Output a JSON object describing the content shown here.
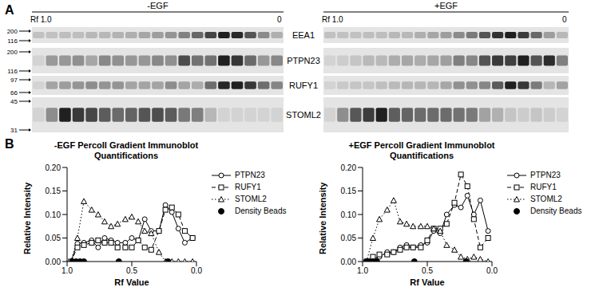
{
  "panel_labels": [
    "A",
    "B"
  ],
  "blots": {
    "conditions": [
      {
        "label": "-EGF",
        "rf_start": "Rf 1.0",
        "rf_end": "0"
      },
      {
        "label": "+EGF",
        "rf_start": "Rf 1.0",
        "rf_end": "0"
      }
    ],
    "rows": [
      {
        "label": "EEA1",
        "markers": [
          200,
          116
        ],
        "intensity": [
          [
            0.1,
            0.1,
            0.12,
            0.12,
            0.15,
            0.15,
            0.18,
            0.2,
            0.25,
            0.3,
            0.35,
            0.45,
            0.6,
            0.8,
            1.0,
            0.95,
            0.7,
            0.4,
            0.2
          ],
          [
            0.1,
            0.1,
            0.1,
            0.12,
            0.12,
            0.15,
            0.15,
            0.2,
            0.25,
            0.3,
            0.4,
            0.5,
            0.7,
            0.9,
            1.0,
            0.85,
            0.6,
            0.3,
            0.15
          ]
        ]
      },
      {
        "label": "PTPN23",
        "markers": [
          200,
          116
        ]
      },
      {
        "label": "RUFY1",
        "markers": [
          97,
          66
        ]
      },
      {
        "label": "STOML2",
        "markers": [
          45,
          31
        ]
      }
    ]
  },
  "chart_data": [
    {
      "type": "line",
      "title": "-EGF Percoll Gradient Immunoblot Quantifications",
      "x_label": "Rf Value",
      "y_label": "Relative Intensity",
      "x": [
        0.97,
        0.92,
        0.87,
        0.81,
        0.76,
        0.71,
        0.66,
        0.61,
        0.55,
        0.5,
        0.45,
        0.4,
        0.35,
        0.29,
        0.24,
        0.19,
        0.14,
        0.09,
        0.03
      ],
      "xlim": [
        1,
        0
      ],
      "xticks": [
        {
          "value": 1,
          "label": "1.0"
        },
        {
          "value": 0.5,
          "label": "0.5"
        },
        {
          "value": 0,
          "label": "0.0"
        }
      ],
      "ylim": [
        0,
        0.2
      ],
      "yticks": [
        {
          "value": 0,
          "label": "0.00"
        },
        {
          "value": 0.05,
          "label": "0.05"
        },
        {
          "value": 0.1,
          "label": "0.10"
        },
        {
          "value": 0.15,
          "label": "0.15"
        },
        {
          "value": 0.2,
          "label": "0.20"
        }
      ],
      "legend": "right",
      "series": [
        {
          "name": "PTPN23",
          "type": "line",
          "color": "#000000",
          "marker": "circle",
          "line_style": "solid",
          "values": [
            0.0,
            0.038,
            0.04,
            0.045,
            0.03,
            0.05,
            0.045,
            0.04,
            0.04,
            0.05,
            0.045,
            0.09,
            0.065,
            0.065,
            0.12,
            0.105,
            0.07,
            0.04,
            0.05
          ]
        },
        {
          "name": "RUFY1",
          "type": "line",
          "color": "#000000",
          "marker": "square",
          "line_style": "dashed",
          "values": [
            0.0,
            0.03,
            0.035,
            0.04,
            0.045,
            0.04,
            0.04,
            0.03,
            0.03,
            0.03,
            0.045,
            0.03,
            0.025,
            0.065,
            0.11,
            0.115,
            0.1,
            0.065,
            0.05
          ]
        },
        {
          "name": "STOML2",
          "type": "line",
          "color": "#000000",
          "marker": "triangle",
          "line_style": "dotted",
          "values": [
            0.0,
            0.05,
            0.128,
            0.11,
            0.1,
            0.085,
            0.075,
            0.08,
            0.09,
            0.095,
            0.085,
            0.065,
            0.06,
            0.02,
            0.0,
            0.0,
            0.0,
            0.0,
            0.0
          ]
        },
        {
          "name": "Density Beads",
          "type": "scatter",
          "color": "#000000",
          "marker": "filled_circle",
          "x": [
            0.96,
            0.93,
            0.9,
            0.87,
            0.6,
            0.22
          ],
          "values": [
            0,
            0,
            0,
            0,
            0,
            0
          ]
        }
      ]
    },
    {
      "type": "line",
      "title": "+EGF Percoll Gradient Immunoblot Quantifications",
      "x_label": "Rf Value",
      "y_label": "Relative Intensity",
      "x": [
        0.97,
        0.92,
        0.87,
        0.81,
        0.76,
        0.71,
        0.66,
        0.61,
        0.55,
        0.5,
        0.45,
        0.4,
        0.35,
        0.29,
        0.24,
        0.19,
        0.14,
        0.09,
        0.03
      ],
      "xlim": [
        1,
        0
      ],
      "xticks": [
        {
          "value": 1,
          "label": "1.0"
        },
        {
          "value": 0.5,
          "label": "0.5"
        },
        {
          "value": 0,
          "label": "0.0"
        }
      ],
      "ylim": [
        0,
        0.2
      ],
      "yticks": [
        {
          "value": 0,
          "label": "0.00"
        },
        {
          "value": 0.05,
          "label": "0.05"
        },
        {
          "value": 0.1,
          "label": "0.10"
        },
        {
          "value": 0.15,
          "label": "0.15"
        },
        {
          "value": 0.2,
          "label": "0.20"
        }
      ],
      "legend": "right",
      "series": [
        {
          "name": "PTPN23",
          "type": "line",
          "color": "#000000",
          "marker": "circle",
          "line_style": "solid",
          "values": [
            0.0,
            0.005,
            0.01,
            0.02,
            0.02,
            0.03,
            0.035,
            0.03,
            0.035,
            0.04,
            0.065,
            0.06,
            0.1,
            0.12,
            0.115,
            0.14,
            0.1,
            0.13,
            0.065
          ]
        },
        {
          "name": "RUFY1",
          "type": "line",
          "color": "#000000",
          "marker": "square",
          "line_style": "dashed",
          "values": [
            0.0,
            0.01,
            0.015,
            0.015,
            0.02,
            0.025,
            0.03,
            0.03,
            0.03,
            0.045,
            0.07,
            0.07,
            0.08,
            0.125,
            0.185,
            0.16,
            0.09,
            0.03,
            0.05
          ]
        },
        {
          "name": "STOML2",
          "type": "line",
          "color": "#000000",
          "marker": "triangle",
          "line_style": "dotted",
          "values": [
            0.0,
            0.05,
            0.09,
            0.11,
            0.13,
            0.085,
            0.08,
            0.075,
            0.075,
            0.075,
            0.07,
            0.065,
            0.035,
            0.025,
            0.01,
            0.005,
            0.01,
            0.005,
            0.0
          ]
        },
        {
          "name": "Density Beads",
          "type": "scatter",
          "color": "#000000",
          "marker": "filled_circle",
          "x": [
            0.97,
            0.95,
            0.92,
            0.89,
            0.6,
            0.2
          ],
          "values": [
            0,
            0,
            0,
            0,
            0,
            0
          ]
        }
      ]
    }
  ]
}
